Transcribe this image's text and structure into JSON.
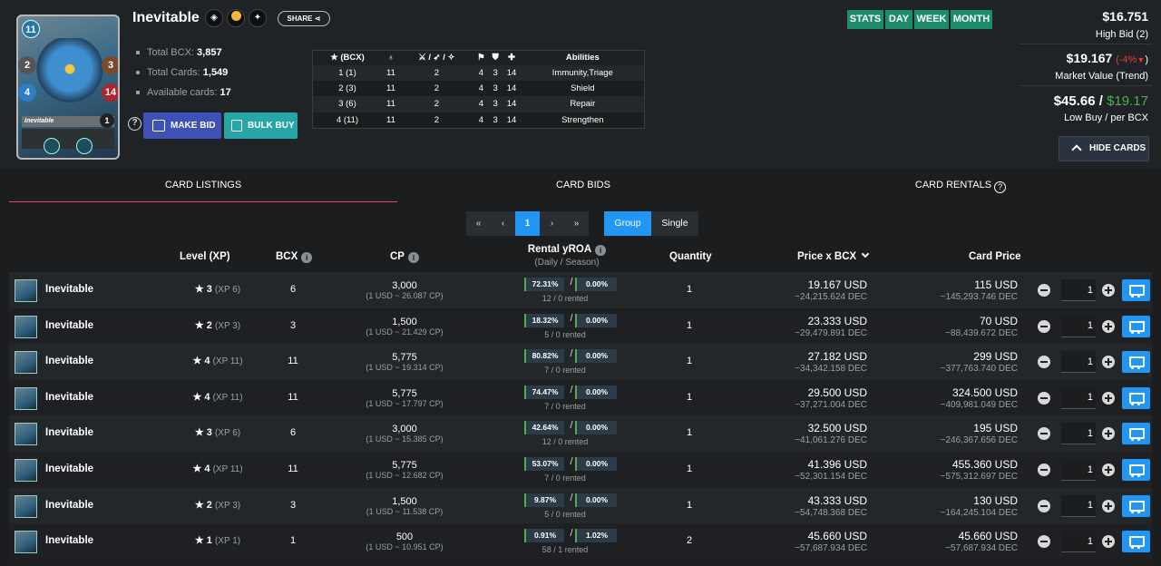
{
  "card": {
    "name": "Inevitable",
    "image_stats": {
      "mana": "11",
      "attack": "2",
      "speed": "4",
      "armor": "3",
      "health": "14",
      "level": "1"
    },
    "share_label": "SHARE",
    "total_bcx_label": "Total BCX:",
    "total_bcx": "3,857",
    "total_cards_label": "Total Cards:",
    "total_cards": "1,549",
    "available_label": "Available cards:",
    "available": "17",
    "make_bid_label": "MAKE BID",
    "bulk_buy_label": "BULK BUY"
  },
  "level_table": {
    "headers": [
      "★ (BCX)",
      "♁",
      "⚔ / ➶ / ✧",
      "⚑",
      "⛊",
      "✚",
      "Abilities"
    ],
    "rows": [
      [
        "1 (1)",
        "11",
        "2",
        "4",
        "3",
        "14",
        "Immunity,Triage"
      ],
      [
        "2 (3)",
        "11",
        "2",
        "4",
        "3",
        "14",
        "Shield"
      ],
      [
        "3 (6)",
        "11",
        "2",
        "4",
        "3",
        "14",
        "Repair"
      ],
      [
        "4 (11)",
        "11",
        "2",
        "4",
        "3",
        "14",
        "Strengthen"
      ]
    ]
  },
  "period_tabs": [
    "STATS",
    "DAY",
    "WEEK",
    "MONTH"
  ],
  "prices": {
    "high_bid": "$16.751",
    "high_bid_label": "High Bid (2)",
    "market_value": "$19.167",
    "trend": "(-4%",
    "trend_close": ")",
    "market_label": "Market Value (Trend)",
    "low_buy": "$45.66 /",
    "per_bcx": "$19.17",
    "low_label": "Low Buy / per BCX",
    "hide_label": "HIDE CARDS"
  },
  "tabs": [
    "CARD LISTINGS",
    "CARD BIDS",
    "CARD RENTALS"
  ],
  "pagination": {
    "first": "«",
    "prev": "‹",
    "current": "1",
    "next": "›",
    "last": "»"
  },
  "view_modes": [
    "Group",
    "Single"
  ],
  "columns": {
    "level": "Level (XP)",
    "bcx": "BCX",
    "cp": "CP",
    "rental": "Rental yROA",
    "rental_sub": "(Daily / Season)",
    "quantity": "Quantity",
    "price_bcx": "Price x BCX",
    "card_price": "Card Price"
  },
  "listings": [
    {
      "name": "Inevitable",
      "level": "3",
      "xp": "(XP 6)",
      "bcx": "6",
      "cp": "3,000",
      "cp_rate": "(1 USD ~ 26.087 CP)",
      "daily": "72.31%",
      "season": "0.00%",
      "rented": "12 / 0 rented",
      "qty": "1",
      "price_usd": "19.167 USD",
      "price_dec": "~24,215.624 DEC",
      "card_usd": "115 USD",
      "card_dec": "~145,293.746 DEC",
      "buy_qty": "1"
    },
    {
      "name": "Inevitable",
      "level": "2",
      "xp": "(XP 3)",
      "bcx": "3",
      "cp": "1,500",
      "cp_rate": "(1 USD ~ 21.429 CP)",
      "daily": "18.32%",
      "season": "0.00%",
      "rented": "5 / 0 rented",
      "qty": "1",
      "price_usd": "23.333 USD",
      "price_dec": "~29,479.891 DEC",
      "card_usd": "70 USD",
      "card_dec": "~88,439.672 DEC",
      "buy_qty": "1"
    },
    {
      "name": "Inevitable",
      "level": "4",
      "xp": "(XP 11)",
      "bcx": "11",
      "cp": "5,775",
      "cp_rate": "(1 USD ~ 19.314 CP)",
      "daily": "80.82%",
      "season": "0.00%",
      "rented": "7 / 0 rented",
      "qty": "1",
      "price_usd": "27.182 USD",
      "price_dec": "~34,342.158 DEC",
      "card_usd": "299 USD",
      "card_dec": "~377,763.740 DEC",
      "buy_qty": "1"
    },
    {
      "name": "Inevitable",
      "level": "4",
      "xp": "(XP 11)",
      "bcx": "11",
      "cp": "5,775",
      "cp_rate": "(1 USD ~ 17.797 CP)",
      "daily": "74.47%",
      "season": "0.00%",
      "rented": "7 / 0 rented",
      "qty": "1",
      "price_usd": "29.500 USD",
      "price_dec": "~37,271.004 DEC",
      "card_usd": "324.500 USD",
      "card_dec": "~409,981.049 DEC",
      "buy_qty": "1"
    },
    {
      "name": "Inevitable",
      "level": "3",
      "xp": "(XP 6)",
      "bcx": "6",
      "cp": "3,000",
      "cp_rate": "(1 USD ~ 15.385 CP)",
      "daily": "42.64%",
      "season": "0.00%",
      "rented": "12 / 0 rented",
      "qty": "1",
      "price_usd": "32.500 USD",
      "price_dec": "~41,061.276 DEC",
      "card_usd": "195 USD",
      "card_dec": "~246,367.656 DEC",
      "buy_qty": "1"
    },
    {
      "name": "Inevitable",
      "level": "4",
      "xp": "(XP 11)",
      "bcx": "11",
      "cp": "5,775",
      "cp_rate": "(1 USD ~ 12.682 CP)",
      "daily": "53.07%",
      "season": "0.00%",
      "rented": "7 / 0 rented",
      "qty": "1",
      "price_usd": "41.396 USD",
      "price_dec": "~52,301.154 DEC",
      "card_usd": "455.360 USD",
      "card_dec": "~575,312.697 DEC",
      "buy_qty": "1"
    },
    {
      "name": "Inevitable",
      "level": "2",
      "xp": "(XP 3)",
      "bcx": "3",
      "cp": "1,500",
      "cp_rate": "(1 USD ~ 11.538 CP)",
      "daily": "9.87%",
      "season": "0.00%",
      "rented": "5 / 0 rented",
      "qty": "1",
      "price_usd": "43.333 USD",
      "price_dec": "~54,748.368 DEC",
      "card_usd": "130 USD",
      "card_dec": "~164,245.104 DEC",
      "buy_qty": "1"
    },
    {
      "name": "Inevitable",
      "level": "1",
      "xp": "(XP 1)",
      "bcx": "1",
      "cp": "500",
      "cp_rate": "(1 USD ~ 10.951 CP)",
      "daily": "0.91%",
      "season": "1.02%",
      "rented": "58 / 1 rented",
      "qty": "2",
      "price_usd": "45.660 USD",
      "price_dec": "~57,687.934 DEC",
      "card_usd": "45.660 USD",
      "card_dec": "~57,687.934 DEC",
      "buy_qty": "1"
    }
  ],
  "colors": {
    "accent": "#2196f3",
    "period": "#1e8a6d",
    "bid_button": "#3f51b5",
    "bulk_button": "#26a6a6",
    "tab_underline": "#d8457a",
    "trend_down": "#e53935",
    "per_bcx": "#4caf50"
  }
}
